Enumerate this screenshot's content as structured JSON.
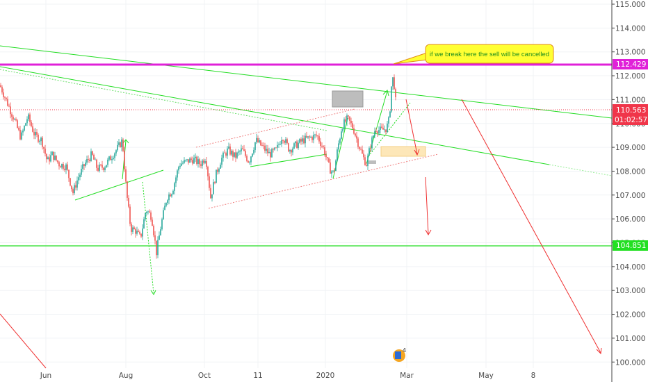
{
  "chart_data": {
    "type": "line",
    "y_ticks": [
      "115.000",
      "114.000",
      "113.000",
      "112.000",
      "111.000",
      "110.000",
      "109.000",
      "108.000",
      "107.000",
      "106.000",
      "105.000",
      "104.000",
      "103.000",
      "102.000",
      "101.000",
      "100.000"
    ],
    "y_tick_values": [
      115,
      114,
      113,
      112,
      111,
      110,
      109,
      108,
      107,
      106,
      105,
      104,
      103,
      102,
      101,
      100
    ],
    "ylim": [
      99.85,
      115.2
    ],
    "x_ticks": [
      {
        "label": "Jun",
        "pos": 66
      },
      {
        "label": "Aug",
        "pos": 181
      },
      {
        "label": "Oct",
        "pos": 294
      },
      {
        "label": "11",
        "pos": 371
      },
      {
        "label": "2020",
        "pos": 468
      },
      {
        "label": "Mar",
        "pos": 585
      },
      {
        "label": "May",
        "pos": 699
      },
      {
        "label": "8",
        "pos": 767
      }
    ],
    "price_labels": {
      "resistance": {
        "text": "112.429",
        "value": 112.429,
        "color": "#e020d8"
      },
      "last": {
        "text": "110.563",
        "value": 110.563,
        "color": "#f0364a"
      },
      "countdown": {
        "text": "01:02:57",
        "color": "#f0364a"
      },
      "support": {
        "text": "104.851",
        "value": 104.851,
        "color": "#22e022"
      }
    },
    "annotation": {
      "text": "if we break here the sell will be cancelled",
      "bg": "#ffff33",
      "border": "#e08a1a",
      "text_color": "#2b9a2b"
    },
    "grid": true,
    "colors": {
      "up": "#26a69a",
      "down": "#ef5350",
      "trend": "#22dd22",
      "resistance": "#e020d8",
      "arrow": "#ef3030"
    },
    "price_path": [
      [
        0,
        111.6
      ],
      [
        10,
        110.9
      ],
      [
        20,
        110.2
      ],
      [
        30,
        109.4
      ],
      [
        40,
        110.3
      ],
      [
        50,
        109.5
      ],
      [
        60,
        109.3
      ],
      [
        68,
        108.4
      ],
      [
        75,
        108.7
      ],
      [
        85,
        108.3
      ],
      [
        95,
        108.2
      ],
      [
        105,
        107.1
      ],
      [
        112,
        107.7
      ],
      [
        122,
        108.3
      ],
      [
        132,
        108.7
      ],
      [
        140,
        108.1
      ],
      [
        150,
        108.2
      ],
      [
        160,
        108.6
      ],
      [
        170,
        109.0
      ],
      [
        176,
        109.3
      ],
      [
        182,
        107.1
      ],
      [
        188,
        105.6
      ],
      [
        195,
        105.5
      ],
      [
        202,
        105.2
      ],
      [
        210,
        106.4
      ],
      [
        218,
        106.1
      ],
      [
        225,
        104.6
      ],
      [
        232,
        105.8
      ],
      [
        240,
        106.9
      ],
      [
        248,
        107.2
      ],
      [
        258,
        108.3
      ],
      [
        268,
        108.4
      ],
      [
        278,
        108.5
      ],
      [
        288,
        108.3
      ],
      [
        296,
        108.6
      ],
      [
        303,
        106.9
      ],
      [
        310,
        107.8
      ],
      [
        318,
        108.5
      ],
      [
        328,
        108.9
      ],
      [
        338,
        108.6
      ],
      [
        348,
        108.9
      ],
      [
        358,
        108.4
      ],
      [
        368,
        109.3
      ],
      [
        378,
        109.0
      ],
      [
        388,
        108.7
      ],
      [
        398,
        108.9
      ],
      [
        406,
        109.5
      ],
      [
        416,
        108.9
      ],
      [
        426,
        109.1
      ],
      [
        436,
        109.3
      ],
      [
        446,
        109.4
      ],
      [
        456,
        109.5
      ],
      [
        466,
        108.9
      ],
      [
        474,
        108.1
      ],
      [
        480,
        107.9
      ],
      [
        486,
        109.0
      ],
      [
        492,
        109.9
      ],
      [
        500,
        110.2
      ],
      [
        508,
        109.8
      ],
      [
        516,
        109.1
      ],
      [
        522,
        108.6
      ],
      [
        527,
        108.3
      ],
      [
        533,
        109.1
      ],
      [
        540,
        109.8
      ],
      [
        548,
        109.7
      ],
      [
        556,
        109.8
      ],
      [
        560,
        110.2
      ],
      [
        564,
        112.0
      ],
      [
        567,
        111.6
      ],
      [
        570,
        110.6
      ]
    ]
  }
}
